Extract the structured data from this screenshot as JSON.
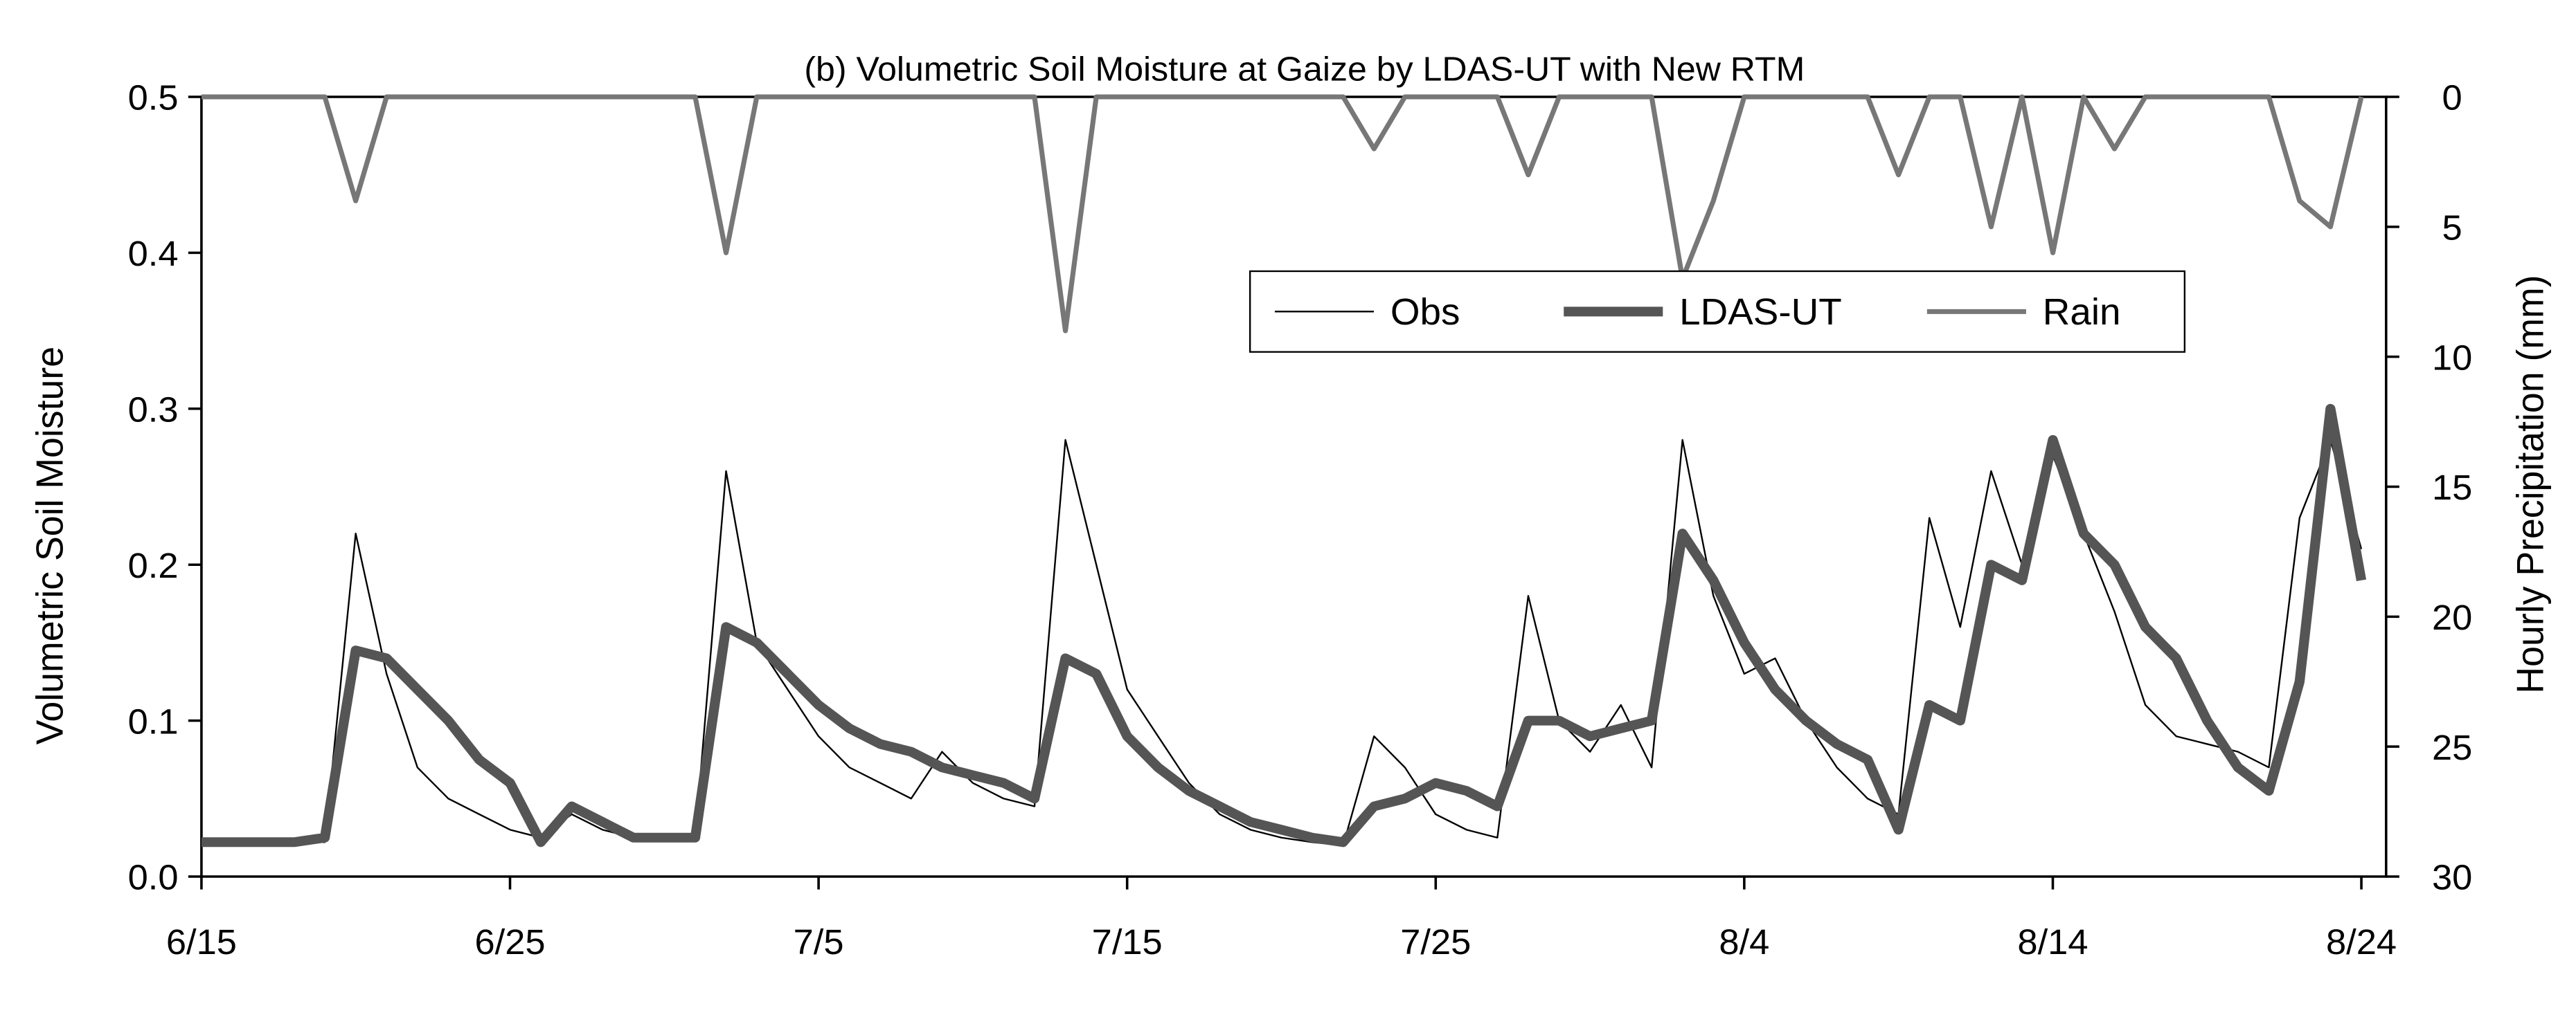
{
  "chart_data": {
    "type": "line",
    "title": "(b) Volumetric Soil Moisture at Gaize by LDAS-UT with New RTM",
    "y_label": "Volumetric Soil Moisture",
    "y2_label": "Hourly Precipitation (mm)",
    "x": [
      "6/15",
      "6/16",
      "6/17",
      "6/18",
      "6/19",
      "6/20",
      "6/21",
      "6/22",
      "6/23",
      "6/24",
      "6/25",
      "6/26",
      "6/27",
      "6/28",
      "6/29",
      "6/30",
      "7/1",
      "7/2",
      "7/3",
      "7/4",
      "7/5",
      "7/6",
      "7/7",
      "7/8",
      "7/9",
      "7/10",
      "7/11",
      "7/12",
      "7/13",
      "7/14",
      "7/15",
      "7/16",
      "7/17",
      "7/18",
      "7/19",
      "7/20",
      "7/21",
      "7/22",
      "7/23",
      "7/24",
      "7/25",
      "7/26",
      "7/27",
      "7/28",
      "7/29",
      "7/30",
      "7/31",
      "8/1",
      "8/2",
      "8/3",
      "8/4",
      "8/5",
      "8/6",
      "8/7",
      "8/8",
      "8/9",
      "8/10",
      "8/11",
      "8/12",
      "8/13",
      "8/14",
      "8/15",
      "8/16",
      "8/17",
      "8/18",
      "8/19",
      "8/20",
      "8/21",
      "8/22",
      "8/23",
      "8/24"
    ],
    "xticks": [
      "6/15",
      "6/25",
      "7/5",
      "7/15",
      "7/25",
      "8/4",
      "8/14",
      "8/24"
    ],
    "ylim": [
      0,
      0.5
    ],
    "yticks": [
      {
        "value": 0,
        "label": "0.0"
      },
      0.1,
      0.2,
      0.3,
      0.4,
      0.5
    ],
    "y2lim": [
      30,
      0
    ],
    "y2ticks": [
      0,
      5,
      10,
      15,
      20,
      25,
      30
    ],
    "legend": "top-right",
    "series": [
      {
        "name": "Obs",
        "color": "#000000",
        "width": 1,
        "values": [
          0.022,
          0.022,
          0.022,
          0.022,
          0.022,
          0.22,
          0.13,
          0.07,
          0.05,
          0.04,
          0.03,
          0.025,
          0.04,
          0.03,
          0.025,
          0.025,
          0.025,
          0.26,
          0.15,
          0.12,
          0.09,
          0.07,
          0.06,
          0.05,
          0.08,
          0.06,
          0.05,
          0.045,
          0.28,
          0.2,
          0.12,
          0.09,
          0.06,
          0.04,
          0.03,
          0.025,
          0.022,
          0.02,
          0.09,
          0.07,
          0.04,
          0.03,
          0.025,
          0.18,
          0.1,
          0.08,
          0.11,
          0.07,
          0.28,
          0.18,
          0.13,
          0.14,
          0.1,
          0.07,
          0.05,
          0.04,
          0.23,
          0.16,
          0.26,
          0.2,
          0.27,
          0.22,
          0.17,
          0.11,
          0.09,
          0.085,
          0.08,
          0.07,
          0.23,
          0.28,
          0.21
        ]
      },
      {
        "name": "LDAS-UT",
        "color": "#555555",
        "width": 6,
        "values": [
          0.022,
          0.022,
          0.022,
          0.022,
          0.025,
          0.145,
          0.14,
          0.12,
          0.1,
          0.075,
          0.06,
          0.022,
          0.045,
          0.035,
          0.025,
          0.025,
          0.025,
          0.16,
          0.15,
          0.13,
          0.11,
          0.095,
          0.085,
          0.08,
          0.07,
          0.065,
          0.06,
          0.05,
          0.14,
          0.13,
          0.09,
          0.07,
          0.055,
          0.045,
          0.035,
          0.03,
          0.025,
          0.022,
          0.045,
          0.05,
          0.06,
          0.055,
          0.045,
          0.1,
          0.1,
          0.09,
          0.095,
          0.1,
          0.22,
          0.19,
          0.15,
          0.12,
          0.1,
          0.085,
          0.075,
          0.03,
          0.11,
          0.1,
          0.2,
          0.19,
          0.28,
          0.22,
          0.2,
          0.16,
          0.14,
          0.1,
          0.07,
          0.055,
          0.125,
          0.3,
          0.19
        ]
      },
      {
        "name": "Rain",
        "color": "#777777",
        "width": 3,
        "axis": "y2",
        "values": [
          0,
          0,
          0,
          0,
          0,
          4,
          0,
          0,
          0,
          0,
          0,
          0,
          0,
          0,
          0,
          0,
          0,
          6,
          0,
          0,
          0,
          0,
          0,
          0,
          0,
          0,
          0,
          0,
          9,
          0,
          0,
          0,
          0,
          0,
          0,
          0,
          0,
          0,
          2,
          0,
          0,
          0,
          0,
          3,
          0,
          0,
          0,
          0,
          7,
          4,
          0,
          0,
          0,
          0,
          0,
          3,
          0,
          0,
          5,
          0,
          6,
          0,
          2,
          0,
          0,
          0,
          0,
          0,
          4,
          5,
          0
        ]
      }
    ]
  }
}
